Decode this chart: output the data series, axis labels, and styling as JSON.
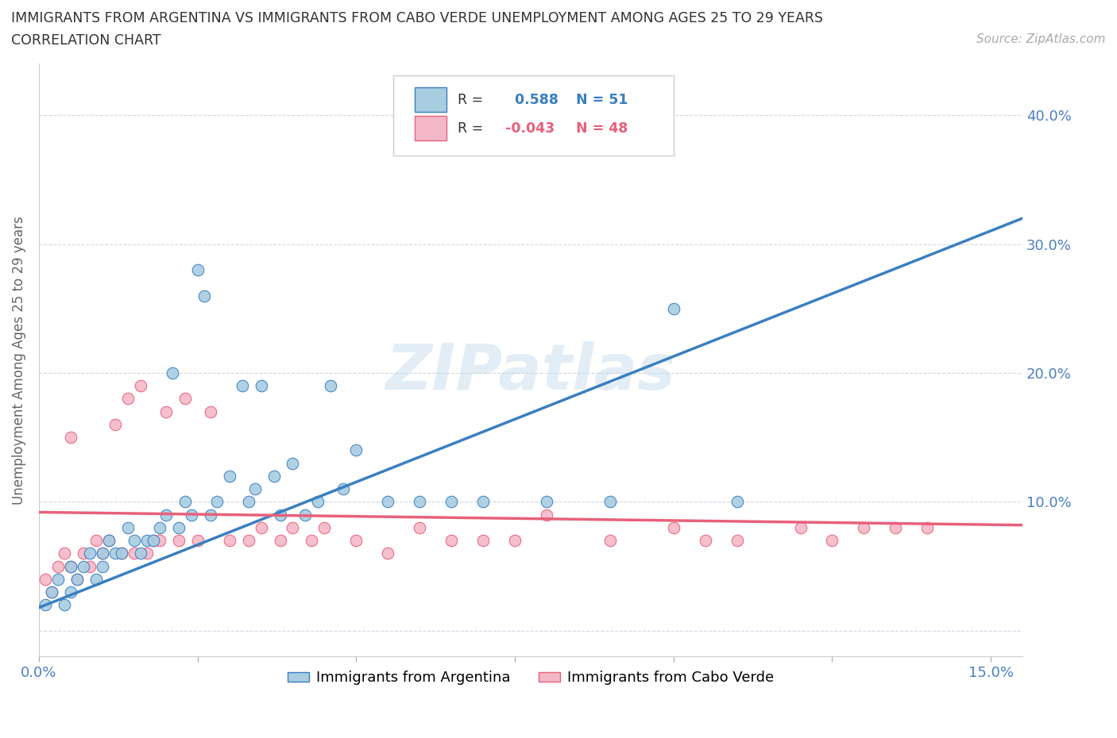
{
  "title_line1": "IMMIGRANTS FROM ARGENTINA VS IMMIGRANTS FROM CABO VERDE UNEMPLOYMENT AMONG AGES 25 TO 29 YEARS",
  "title_line2": "CORRELATION CHART",
  "source": "Source: ZipAtlas.com",
  "ylabel": "Unemployment Among Ages 25 to 29 years",
  "xlim": [
    0.0,
    0.155
  ],
  "ylim": [
    -0.02,
    0.44
  ],
  "argentina_color": "#a8cce0",
  "cabo_verde_color": "#f4b8c8",
  "argentina_R": 0.588,
  "argentina_N": 51,
  "cabo_verde_R": -0.043,
  "cabo_verde_N": 48,
  "argentina_line_color": "#3a7fc1",
  "cabo_verde_line_color": "#e8607a",
  "watermark": "ZIPatlas",
  "argentina_scatter_x": [
    0.001,
    0.002,
    0.003,
    0.004,
    0.005,
    0.005,
    0.006,
    0.007,
    0.008,
    0.009,
    0.01,
    0.01,
    0.011,
    0.012,
    0.013,
    0.014,
    0.015,
    0.016,
    0.017,
    0.018,
    0.019,
    0.02,
    0.021,
    0.022,
    0.023,
    0.024,
    0.025,
    0.026,
    0.027,
    0.028,
    0.03,
    0.032,
    0.033,
    0.034,
    0.035,
    0.037,
    0.038,
    0.04,
    0.042,
    0.044,
    0.046,
    0.048,
    0.05,
    0.055,
    0.06,
    0.065,
    0.07,
    0.08,
    0.09,
    0.1,
    0.11
  ],
  "argentina_scatter_y": [
    0.02,
    0.03,
    0.04,
    0.02,
    0.03,
    0.05,
    0.04,
    0.05,
    0.06,
    0.04,
    0.05,
    0.06,
    0.07,
    0.06,
    0.06,
    0.08,
    0.07,
    0.06,
    0.07,
    0.07,
    0.08,
    0.09,
    0.2,
    0.08,
    0.1,
    0.09,
    0.28,
    0.26,
    0.09,
    0.1,
    0.12,
    0.19,
    0.1,
    0.11,
    0.19,
    0.12,
    0.09,
    0.13,
    0.09,
    0.1,
    0.19,
    0.11,
    0.14,
    0.1,
    0.1,
    0.1,
    0.1,
    0.1,
    0.1,
    0.25,
    0.1
  ],
  "cabo_verde_scatter_x": [
    0.001,
    0.002,
    0.003,
    0.004,
    0.005,
    0.005,
    0.006,
    0.007,
    0.008,
    0.009,
    0.01,
    0.011,
    0.012,
    0.013,
    0.014,
    0.015,
    0.016,
    0.017,
    0.018,
    0.019,
    0.02,
    0.022,
    0.023,
    0.025,
    0.027,
    0.03,
    0.033,
    0.035,
    0.038,
    0.04,
    0.043,
    0.045,
    0.05,
    0.055,
    0.06,
    0.065,
    0.07,
    0.075,
    0.08,
    0.09,
    0.1,
    0.105,
    0.11,
    0.12,
    0.125,
    0.13,
    0.135,
    0.14
  ],
  "cabo_verde_scatter_y": [
    0.04,
    0.03,
    0.05,
    0.06,
    0.05,
    0.15,
    0.04,
    0.06,
    0.05,
    0.07,
    0.06,
    0.07,
    0.16,
    0.06,
    0.18,
    0.06,
    0.19,
    0.06,
    0.07,
    0.07,
    0.17,
    0.07,
    0.18,
    0.07,
    0.17,
    0.07,
    0.07,
    0.08,
    0.07,
    0.08,
    0.07,
    0.08,
    0.07,
    0.06,
    0.08,
    0.07,
    0.07,
    0.07,
    0.09,
    0.07,
    0.08,
    0.07,
    0.07,
    0.08,
    0.07,
    0.08,
    0.08,
    0.08
  ]
}
